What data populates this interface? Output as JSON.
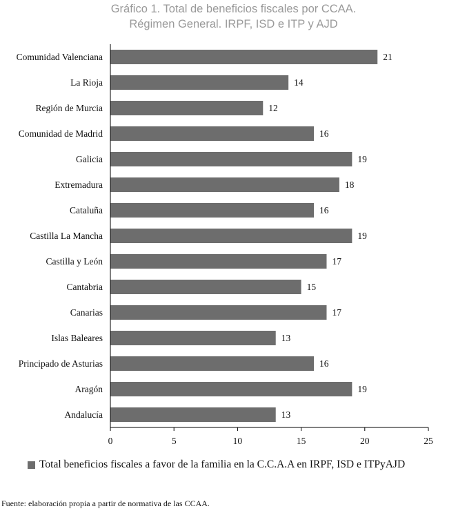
{
  "chart_data": {
    "type": "bar",
    "orientation": "horizontal",
    "title_line1": "Gráfico 1. Total de beneficios fiscales por CCAA.",
    "title_line2": "Régimen General. IRPF, ISD e ITP y AJD",
    "categories": [
      "Comunidad Valenciana",
      "La Rioja",
      "Región de Murcia",
      "Comunidad de Madrid",
      "Galicia",
      "Extremadura",
      "Cataluña",
      "Castilla La Mancha",
      "Castilla y León",
      "Cantabria",
      "Canarias",
      "Islas Baleares",
      "Principado de Asturias",
      "Aragón",
      "Andalucía"
    ],
    "series": [
      {
        "name": "Total beneficios fiscales a favor de la familia en la C.C.A.A en IRPF, ISD e ITPyAJD",
        "values": [
          21,
          14,
          12,
          16,
          19,
          18,
          16,
          19,
          17,
          15,
          17,
          13,
          16,
          19,
          13
        ]
      }
    ],
    "xlim": [
      0,
      25
    ],
    "xticks": [
      "0",
      "5",
      "10",
      "15",
      "20",
      "25"
    ],
    "bar_color": "#6d6d6d",
    "grid": false,
    "legend_position": "bottom",
    "source": "Fuente: elaboración propia a partir de normativa de las CCAA."
  }
}
